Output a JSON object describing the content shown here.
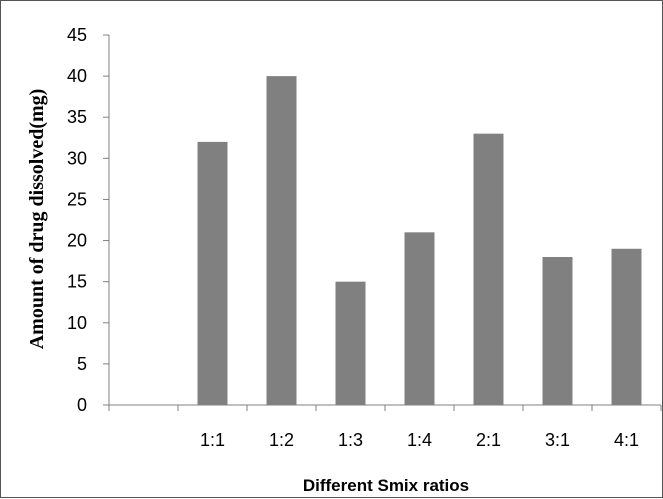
{
  "chart_data": {
    "type": "bar",
    "title": "",
    "xlabel": "Different Smix ratios",
    "ylabel": "Amount of drug dissolved(mg)",
    "categories": [
      "",
      "1:1",
      "1:2",
      "1:3",
      "1:4",
      "2:1",
      "3:1",
      "4:1"
    ],
    "values": [
      null,
      32,
      40,
      15,
      21,
      33,
      18,
      19
    ],
    "ylim": [
      0,
      45
    ],
    "yticks": [
      0,
      5,
      10,
      15,
      20,
      25,
      30,
      35,
      40,
      45
    ],
    "grid": false,
    "legend": "none",
    "bar_color": "#808080"
  }
}
